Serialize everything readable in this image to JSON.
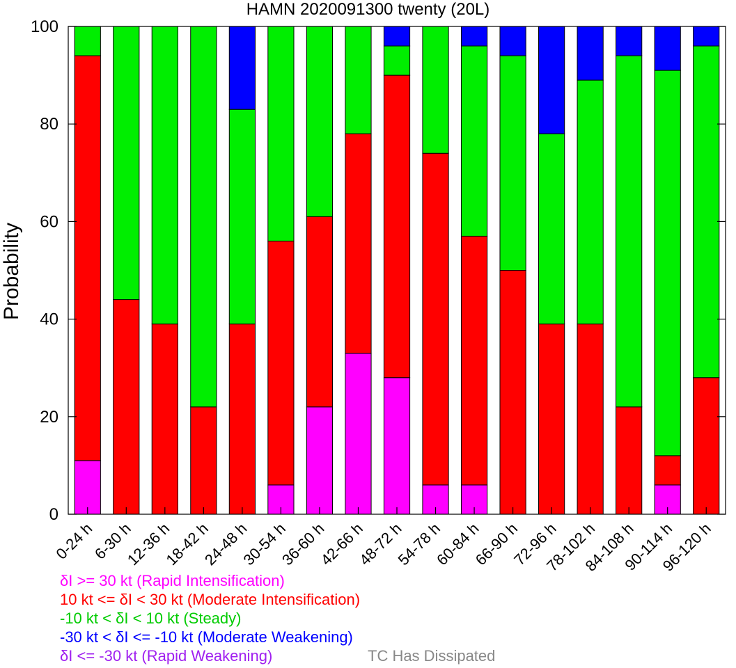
{
  "chart_data": {
    "type": "bar",
    "stacked": true,
    "title": "HAMN 2020091300 twenty (20L)",
    "ylabel": "Probability",
    "xlabel": "",
    "ylim": [
      0,
      100
    ],
    "yticks": [
      0,
      20,
      40,
      60,
      80,
      100
    ],
    "grid": false,
    "categories": [
      "0-24 h",
      "6-30 h",
      "12-36 h",
      "18-42 h",
      "24-48 h",
      "30-54 h",
      "36-60 h",
      "42-66 h",
      "48-72 h",
      "54-78 h",
      "60-84 h",
      "66-90 h",
      "72-96 h",
      "78-102 h",
      "84-108 h",
      "90-114 h",
      "96-120 h"
    ],
    "series": [
      {
        "name": "δI >= 30 kt (Rapid Intensification)",
        "color": "#ff00ff",
        "values": [
          11,
          0,
          0,
          0,
          0,
          6,
          22,
          33,
          28,
          6,
          6,
          0,
          0,
          0,
          0,
          6,
          0
        ]
      },
      {
        "name": "10 kt <= δI < 30 kt (Moderate Intensification)",
        "color": "#ff0000",
        "values": [
          83,
          44,
          39,
          22,
          39,
          50,
          39,
          45,
          62,
          68,
          51,
          50,
          39,
          39,
          22,
          6,
          28
        ]
      },
      {
        "name": "-10 kt < δI < 10 kt (Steady)",
        "color": "#00ee00",
        "values": [
          6,
          56,
          61,
          78,
          44,
          44,
          39,
          22,
          6,
          26,
          39,
          44,
          39,
          50,
          72,
          79,
          68
        ]
      },
      {
        "name": "-30 kt < δI <= -10 kt (Moderate Weakening)",
        "color": "#0000ff",
        "values": [
          0,
          0,
          0,
          0,
          17,
          0,
          0,
          0,
          4,
          0,
          4,
          6,
          22,
          11,
          6,
          9,
          4
        ]
      },
      {
        "name": "δI <= -30 kt (Rapid Weakening)",
        "color": "#a020f0",
        "values": [
          0,
          0,
          0,
          0,
          0,
          0,
          0,
          0,
          0,
          0,
          0,
          0,
          0,
          0,
          0,
          0,
          0
        ]
      }
    ],
    "extra_legend": {
      "name": "TC Has Dissipated",
      "color": "#888888"
    }
  }
}
